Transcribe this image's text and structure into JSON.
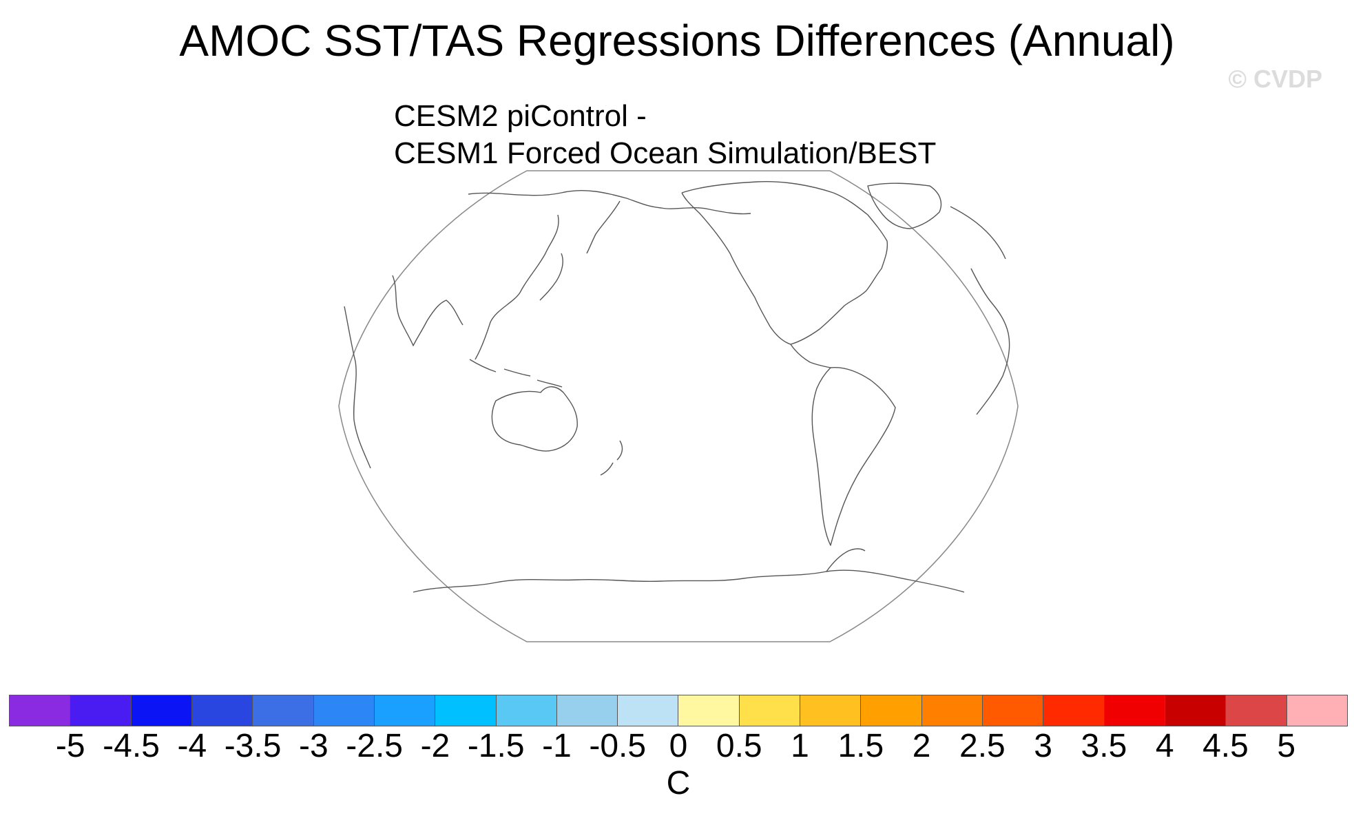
{
  "title": "AMOC SST/TAS Regressions Differences (Annual)",
  "watermark": "© CVDP",
  "subtitle": {
    "line1": "CESM2 piControl -",
    "line2": "CESM1 Forced Ocean Simulation/BEST"
  },
  "map": {
    "projection": "Robinson",
    "central_longitude": 180,
    "outline_color": "#888888",
    "coast_color": "#555555"
  },
  "colorbar": {
    "colors": [
      "#8a2be2",
      "#4b1cf2",
      "#0a14f5",
      "#2a46e0",
      "#3c6ee6",
      "#2d86f5",
      "#1aa0ff",
      "#00c0ff",
      "#5ac8f5",
      "#96d0ec",
      "#bde2f5",
      "#fff8a0",
      "#ffe04a",
      "#ffc020",
      "#ffa000",
      "#ff8000",
      "#ff5a00",
      "#ff2a00",
      "#f00000",
      "#c80000",
      "#dc4646",
      "#ffb0b4"
    ],
    "tick_labels": [
      "-5",
      "-4.5",
      "-4",
      "-3.5",
      "-3",
      "-2.5",
      "-2",
      "-1.5",
      "-1",
      "-0.5",
      "0",
      "0.5",
      "1",
      "1.5",
      "2",
      "2.5",
      "3",
      "3.5",
      "4",
      "4.5",
      "5"
    ],
    "unit": "C"
  }
}
